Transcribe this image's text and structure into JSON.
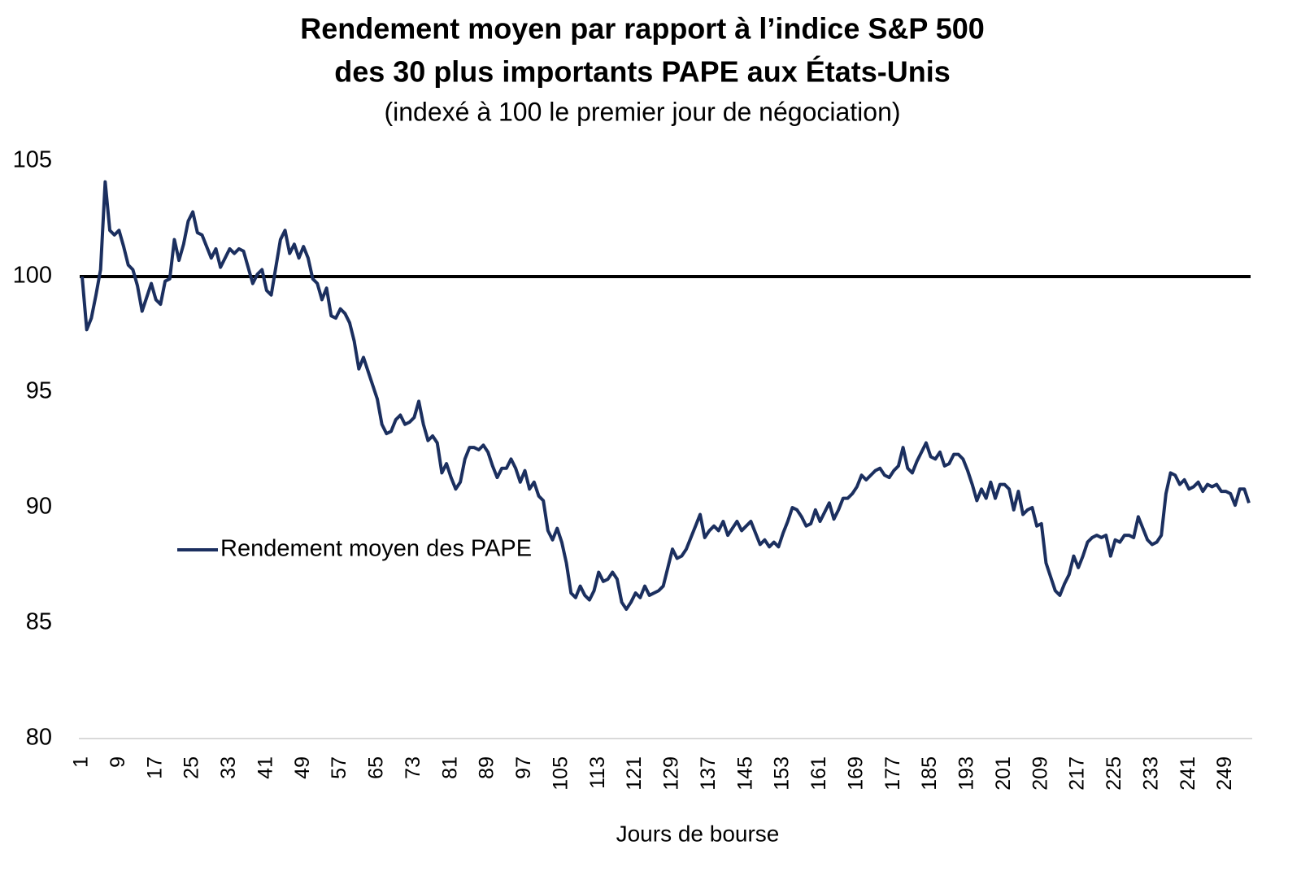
{
  "chart_data": {
    "type": "line",
    "title": [
      "Rendement moyen par rapport à l’indice S&P 500",
      "des 30 plus importants PAPE aux États-Unis"
    ],
    "subtitle": "(indexé à 100 le premier jour de négociation)",
    "x_label": "Jours de bourse",
    "x": [
      1,
      2,
      3,
      4,
      5,
      6,
      7,
      8,
      9,
      10,
      11,
      12,
      13,
      14,
      15,
      16,
      17,
      18,
      19,
      20,
      21,
      22,
      23,
      24,
      25,
      26,
      27,
      28,
      29,
      30,
      31,
      32,
      33,
      34,
      35,
      36,
      37,
      38,
      39,
      40,
      41,
      42,
      43,
      44,
      45,
      46,
      47,
      48,
      49,
      50,
      51,
      52,
      53,
      54,
      55,
      56,
      57,
      58,
      59,
      60,
      61,
      62,
      63,
      64,
      65,
      66,
      67,
      68,
      69,
      70,
      71,
      72,
      73,
      74,
      75,
      76,
      77,
      78,
      79,
      80,
      81,
      82,
      83,
      84,
      85,
      86,
      87,
      88,
      89,
      90,
      91,
      92,
      93,
      94,
      95,
      96,
      97,
      98,
      99,
      100,
      101,
      102,
      103,
      104,
      105,
      106,
      107,
      108,
      109,
      110,
      111,
      112,
      113,
      114,
      115,
      116,
      117,
      118,
      119,
      120,
      121,
      122,
      123,
      124,
      125,
      126,
      127,
      128,
      129,
      130,
      131,
      132,
      133,
      134,
      135,
      136,
      137,
      138,
      139,
      140,
      141,
      142,
      143,
      144,
      145,
      146,
      147,
      148,
      149,
      150,
      151,
      152,
      153,
      154,
      155,
      156,
      157,
      158,
      159,
      160,
      161,
      162,
      163,
      164,
      165,
      166,
      167,
      168,
      169,
      170,
      171,
      172,
      173,
      174,
      175,
      176,
      177,
      178,
      179,
      180,
      181,
      182,
      183,
      184,
      185,
      186,
      187,
      188,
      189,
      190,
      191,
      192,
      193,
      194,
      195,
      196,
      197,
      198,
      199,
      200,
      201,
      202,
      203,
      204,
      205,
      206,
      207,
      208,
      209,
      210,
      211,
      212,
      213,
      214,
      215,
      216,
      217,
      218,
      219,
      220,
      221,
      222,
      223,
      224,
      225,
      226,
      227,
      228,
      229,
      230,
      231,
      232,
      233,
      234,
      235,
      236,
      237,
      238,
      239,
      240,
      241,
      242,
      243,
      244,
      245,
      246,
      247,
      248,
      249,
      250,
      251,
      252,
      253,
      254
    ],
    "series": [
      {
        "name": "Rendement moyen des PAPE",
        "color": "#1b2f5f",
        "values": [
          100,
          97.7,
          98.2,
          99.2,
          100.3,
          104.1,
          102.0,
          101.8,
          102.0,
          101.3,
          100.5,
          100.3,
          99.6,
          98.5,
          99.1,
          99.7,
          99.0,
          98.8,
          99.8,
          99.9,
          101.6,
          100.7,
          101.4,
          102.4,
          102.8,
          101.9,
          101.8,
          101.3,
          100.8,
          101.2,
          100.4,
          100.8,
          101.2,
          101.0,
          101.2,
          101.1,
          100.4,
          99.7,
          100.1,
          100.3,
          99.4,
          99.2,
          100.4,
          101.6,
          102.0,
          101.0,
          101.4,
          100.8,
          101.3,
          100.8,
          99.9,
          99.7,
          99.0,
          99.5,
          98.3,
          98.2,
          98.6,
          98.4,
          98.0,
          97.2,
          96.0,
          96.5,
          95.9,
          95.3,
          94.7,
          93.6,
          93.2,
          93.3,
          93.8,
          94.0,
          93.6,
          93.7,
          93.9,
          94.6,
          93.6,
          92.9,
          93.1,
          92.8,
          91.5,
          91.9,
          91.3,
          90.8,
          91.1,
          92.1,
          92.6,
          92.6,
          92.5,
          92.7,
          92.4,
          91.8,
          91.3,
          91.7,
          91.7,
          92.1,
          91.7,
          91.1,
          91.6,
          90.8,
          91.1,
          90.5,
          90.3,
          89.0,
          88.6,
          89.1,
          88.5,
          87.6,
          86.3,
          86.1,
          86.6,
          86.2,
          86.0,
          86.4,
          87.2,
          86.8,
          86.9,
          87.2,
          86.9,
          85.9,
          85.6,
          85.9,
          86.3,
          86.1,
          86.6,
          86.2,
          86.3,
          86.4,
          86.6,
          87.4,
          88.2,
          87.8,
          87.9,
          88.2,
          88.7,
          89.2,
          89.7,
          88.7,
          89.0,
          89.2,
          89.0,
          89.4,
          88.8,
          89.1,
          89.4,
          89.0,
          89.2,
          89.4,
          88.9,
          88.4,
          88.6,
          88.3,
          88.5,
          88.3,
          88.9,
          89.4,
          90.0,
          89.9,
          89.6,
          89.2,
          89.3,
          89.9,
          89.4,
          89.8,
          90.2,
          89.5,
          89.9,
          90.4,
          90.4,
          90.6,
          90.9,
          91.4,
          91.2,
          91.4,
          91.6,
          91.7,
          91.4,
          91.3,
          91.6,
          91.8,
          92.6,
          91.7,
          91.5,
          92.0,
          92.4,
          92.8,
          92.2,
          92.1,
          92.4,
          91.8,
          91.9,
          92.3,
          92.3,
          92.1,
          91.6,
          91.0,
          90.3,
          90.8,
          90.4,
          91.1,
          90.4,
          91.0,
          91.0,
          90.8,
          89.9,
          90.7,
          89.7,
          89.9,
          90.0,
          89.2,
          89.3,
          87.6,
          87.0,
          86.4,
          86.2,
          86.7,
          87.1,
          87.9,
          87.4,
          87.9,
          88.5,
          88.7,
          88.8,
          88.7,
          88.8,
          87.9,
          88.6,
          88.5,
          88.8,
          88.8,
          88.7,
          89.6,
          89.1,
          88.6,
          88.4,
          88.5,
          88.8,
          90.6,
          91.5,
          91.4,
          91.0,
          91.2,
          90.8,
          90.9,
          91.1,
          90.7,
          91.0,
          90.9,
          91.0,
          90.7,
          90.7,
          90.6,
          90.1,
          90.8,
          90.8,
          90.2
        ]
      }
    ],
    "reference_line": {
      "value": 100,
      "color": "#000000"
    },
    "xlim": [
      1,
      254
    ],
    "xticks": [
      1,
      9,
      17,
      25,
      33,
      41,
      49,
      57,
      65,
      73,
      81,
      89,
      97,
      105,
      113,
      121,
      129,
      137,
      145,
      153,
      161,
      169,
      177,
      185,
      193,
      201,
      209,
      217,
      225,
      233,
      241,
      249
    ],
    "ylim": [
      80,
      105
    ],
    "yticks": [
      80,
      85,
      90,
      95,
      100,
      105
    ],
    "grid": false,
    "legend": "center-left"
  }
}
